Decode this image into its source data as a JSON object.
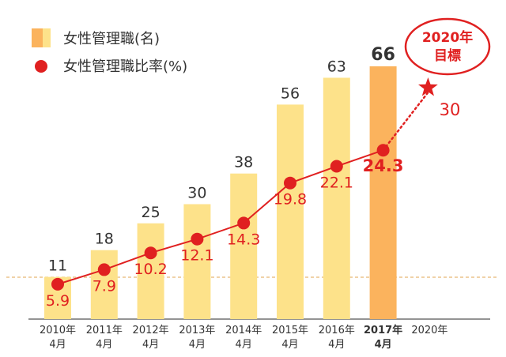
{
  "chart_data": {
    "type": "bar",
    "categories": [
      [
        "2010年",
        "4月"
      ],
      [
        "2011年",
        "4月"
      ],
      [
        "2012年",
        "4月"
      ],
      [
        "2013年",
        "4月"
      ],
      [
        "2014年",
        "4月"
      ],
      [
        "2015年",
        "4月"
      ],
      [
        "2016年",
        "4月"
      ],
      [
        "2017年",
        "4月"
      ],
      [
        "2020年"
      ]
    ],
    "series": [
      {
        "name": "女性管理職(名)",
        "type": "bar",
        "values": [
          11,
          18,
          25,
          30,
          38,
          56,
          63,
          66,
          null
        ]
      },
      {
        "name": "女性管理職比率(%)",
        "type": "line",
        "values": [
          "5.9",
          "7.9",
          "10.2",
          "12.1",
          "14.3",
          "19.8",
          "22.1",
          "24.3",
          null
        ]
      }
    ],
    "target": {
      "category": "2020年",
      "value": "30",
      "label_line1": "2020年",
      "label_line2": "目標"
    },
    "highlight_category": "2017年",
    "colors": {
      "bar": "#fde28a",
      "bar_highlight": "#fbb35d",
      "rate": "#e02020",
      "reference_line": "#e8b874",
      "axis": "#555555"
    }
  }
}
